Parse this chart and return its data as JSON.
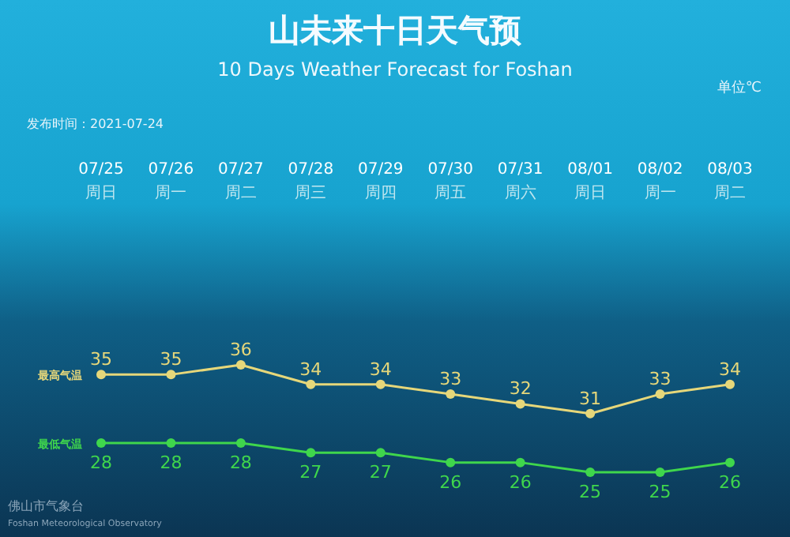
{
  "chart_data": {
    "type": "line",
    "title": "山未来十日天气预",
    "subtitle": "10 Days Weather Forecast for Foshan",
    "annotations": [
      "单位℃",
      "发布时间：2021-07-24",
      "佛山市气象台",
      "Foshan Meteorological Observatory"
    ],
    "categories": [
      "07/25\n周日",
      "07/26\n周一",
      "07/27\n周二",
      "07/28\n周三",
      "07/29\n周四",
      "07/30\n周五",
      "07/31\n周六",
      "08/01\n周日",
      "08/02\n周一",
      "08/03\n周二"
    ],
    "series": [
      {
        "name": "最高气温",
        "color": "#e6d77a",
        "values": [
          35,
          35,
          36,
          34,
          34,
          33,
          32,
          31,
          33,
          34
        ]
      },
      {
        "name": "最低气温",
        "color": "#3fd64c",
        "values": [
          28,
          28,
          28,
          27,
          27,
          26,
          26,
          25,
          25,
          26
        ]
      }
    ],
    "data_labels": true,
    "marker": "circle",
    "line_style": "solid",
    "legend": "left",
    "relative": false
  }
}
